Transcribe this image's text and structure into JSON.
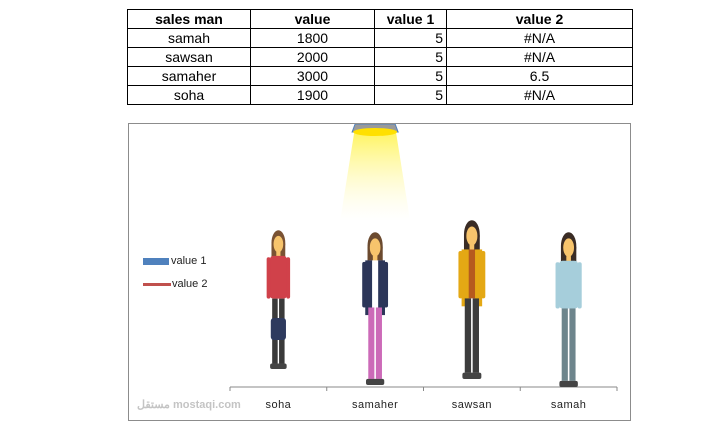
{
  "table": {
    "headers": [
      "sales man",
      "value",
      "value 1",
      "value 2"
    ],
    "rows": [
      [
        "samah",
        "1800",
        "5",
        "#N/A"
      ],
      [
        "sawsan",
        "2000",
        "5",
        "#N/A"
      ],
      [
        "samaher",
        "3000",
        "5",
        "6.5"
      ],
      [
        "soha",
        "1900",
        "5",
        "#N/A"
      ]
    ]
  },
  "chart_data": {
    "type": "bar",
    "categories": [
      "soha",
      "samaher",
      "sawsan",
      "samah"
    ],
    "series": [
      {
        "name": "value 1",
        "values": [
          5,
          5,
          5,
          5
        ],
        "color": "#4f81bd"
      },
      {
        "name": "value 2",
        "values": [
          null,
          6.5,
          null,
          null
        ],
        "color": "#c0504d"
      }
    ],
    "legend": "left",
    "grid": false,
    "spotlight_on": "samaher"
  },
  "watermark": "مستقل mostaqi.com"
}
